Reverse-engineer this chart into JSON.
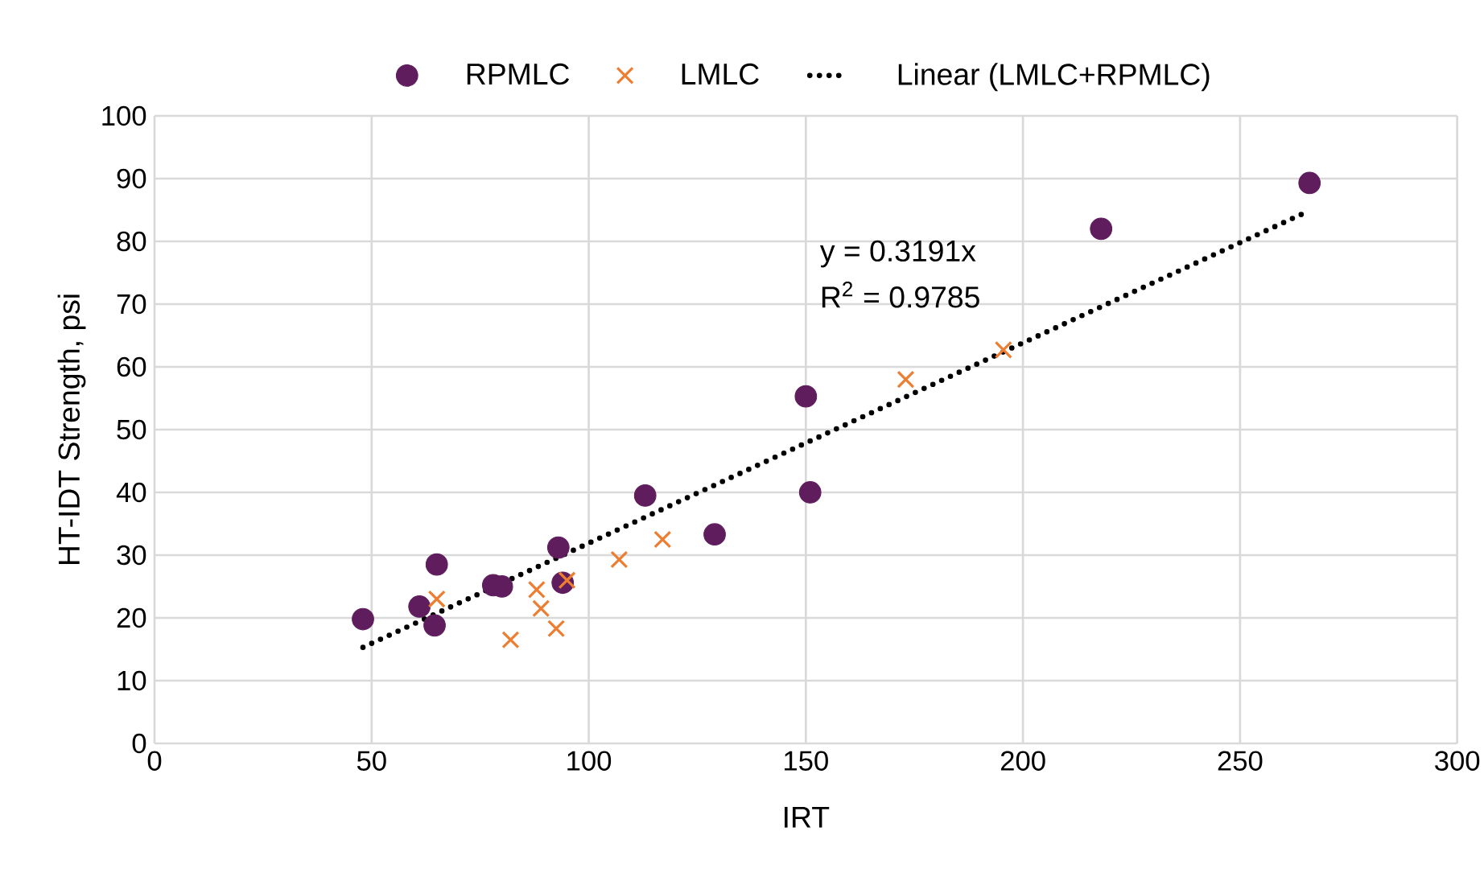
{
  "chart_data": {
    "type": "scatter",
    "xlabel": "IRT",
    "ylabel": "HT-IDT Strength, psi",
    "xlim": [
      0,
      300
    ],
    "xticks": [
      0,
      50,
      100,
      150,
      200,
      250,
      300
    ],
    "ylim": [
      0,
      100
    ],
    "yticks": [
      0,
      10,
      20,
      30,
      40,
      50,
      60,
      70,
      80,
      90,
      100
    ],
    "grid": true,
    "legend": "top",
    "annotations": [
      "y = 0.3191x",
      "R$^{2}$ = 0.9785"
    ],
    "series": [
      {
        "name": "RPMLC",
        "color": "#5f1d5d",
        "marker": "circle",
        "x": [
          48,
          61,
          65,
          64.5,
          78,
          80,
          93,
          94,
          113,
          129,
          150,
          151,
          218,
          266
        ],
        "values": [
          19.8,
          21.8,
          28.5,
          18.8,
          25.2,
          25,
          31.2,
          25.6,
          39.5,
          33.3,
          55.3,
          40,
          82,
          89.3
        ]
      },
      {
        "name": "LMLC",
        "color": "#ed7d31",
        "marker": "cross",
        "x": [
          65,
          82,
          88,
          89,
          92.5,
          95,
          107,
          117,
          173,
          195.5
        ],
        "values": [
          23,
          16.5,
          24.5,
          21.5,
          18.3,
          26,
          29.3,
          32.5,
          58,
          62.7
        ]
      },
      {
        "name": "Linear (LMLC+RPMLC)",
        "type": "line",
        "color": "#000000",
        "marker": "none",
        "line_style": "dotted",
        "x": [
          48,
          266
        ],
        "values": [
          15.3,
          84.9
        ]
      }
    ]
  }
}
